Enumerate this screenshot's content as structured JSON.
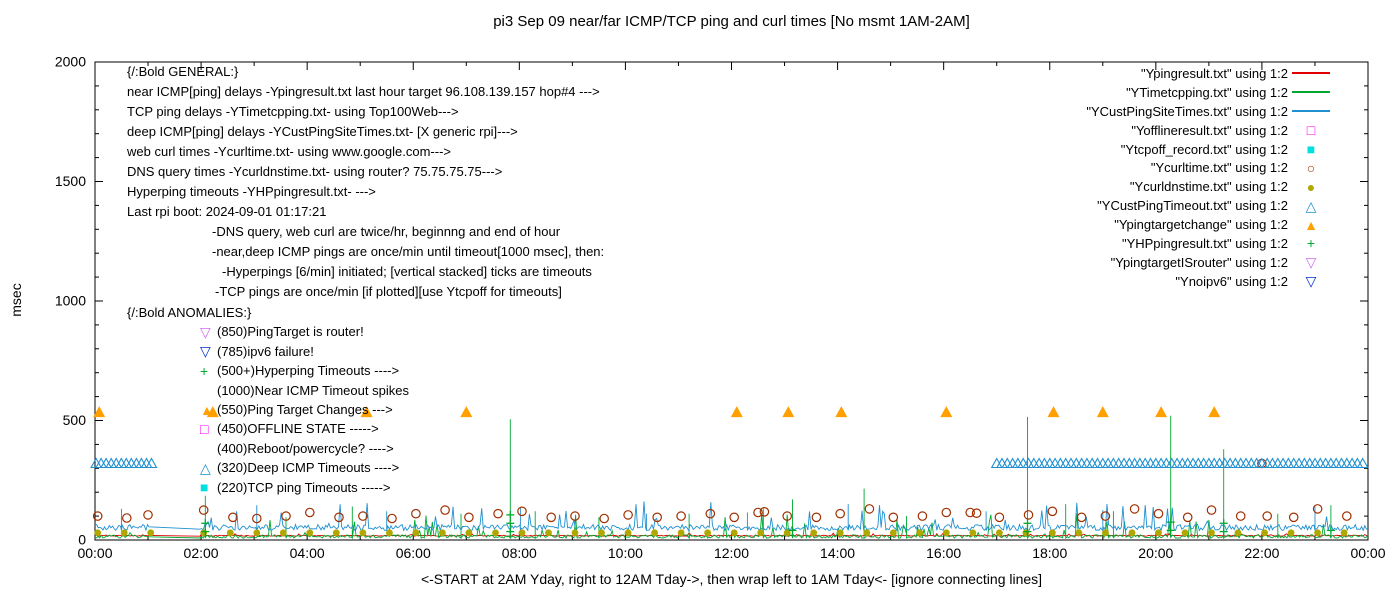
{
  "title": "pi3 Sep 09  near/far ICMP/TCP ping and curl times [No msmt 1AM-2AM]",
  "ylabel": "msec",
  "xlabel": "<-START at 2AM Yday, right to 12AM Tday->, then wrap left to 1AM Tday<- [ignore connecting lines]",
  "axes": {
    "y_ticks": [
      0,
      500,
      1000,
      1500,
      2000
    ],
    "x_ticks": [
      {
        "h": 0,
        "label": "00:00"
      },
      {
        "h": 2,
        "label": "02:00"
      },
      {
        "h": 4,
        "label": "04:00"
      },
      {
        "h": 6,
        "label": "06:00"
      },
      {
        "h": 8,
        "label": "08:00"
      },
      {
        "h": 10,
        "label": "10:00"
      },
      {
        "h": 12,
        "label": "12:00"
      },
      {
        "h": 14,
        "label": "14:00"
      },
      {
        "h": 16,
        "label": "16:00"
      },
      {
        "h": 18,
        "label": "18:00"
      },
      {
        "h": 20,
        "label": "20:00"
      },
      {
        "h": 22,
        "label": "22:00"
      },
      {
        "h": 24,
        "label": "00:00"
      }
    ]
  },
  "legend": [
    {
      "label": "\"Ypingresult.txt\" using 1:2",
      "style": "line",
      "color": "#e00000"
    },
    {
      "label": "\"YTimetcpping.txt\" using 1:2",
      "style": "line",
      "color": "#00a830"
    },
    {
      "label": "\"YCustPingSiteTimes.txt\" using 1:2",
      "style": "line",
      "color": "#2090d0"
    },
    {
      "label": "\"Yofflineresult.txt\" using 1:2",
      "style": "square-open",
      "color": "#ff00ff"
    },
    {
      "label": "\"Ytcpoff_record.txt\" using 1:2",
      "style": "square-filled",
      "color": "#00e0e0"
    },
    {
      "label": "\"Ycurltime.txt\" using 1:2",
      "style": "circle-open",
      "color": "#a03000"
    },
    {
      "label": "\"Ycurldnstime.txt\" using 1:2",
      "style": "circle-filled",
      "color": "#b0a800"
    },
    {
      "label": "\"YCustPingTimeout.txt\" using 1:2",
      "style": "triangle-up-open",
      "color": "#2090d0"
    },
    {
      "label": "\"Ypingtargetchange\" using 1:2",
      "style": "triangle-up-filled",
      "color": "#ffa000"
    },
    {
      "label": "\"YHPpingresult.txt\" using 1:2",
      "style": "plus",
      "color": "#00a830"
    },
    {
      "label": "\"YpingtargetISrouter\" using 1:2",
      "style": "triangle-down-open",
      "color": "#d070f0"
    },
    {
      "label": "\"Ynoipv6\" using 1:2",
      "style": "triangle-down-open",
      "color": "#0033cc"
    }
  ],
  "annotations": {
    "general": {
      "heading": "{/:Bold GENERAL:}",
      "lines": [
        {
          "indent": 0,
          "text": "near ICMP[ping] delays -Ypingresult.txt last hour target 96.108.139.157 hop#4 --->"
        },
        {
          "indent": 0,
          "text": "TCP ping delays -YTimetcpping.txt- using Top100Web--->"
        },
        {
          "indent": 0,
          "text": "deep ICMP[ping] delays -YCustPingSiteTimes.txt- [X generic rpi]--->"
        },
        {
          "indent": 0,
          "text": "web curl times -Ycurltime.txt- using www.google.com--->"
        },
        {
          "indent": 0,
          "text": "DNS query times -Ycurldnstime.txt- using router? 75.75.75.75--->"
        },
        {
          "indent": 0,
          "text": "Hyperping timeouts -YHPpingresult.txt- --->"
        },
        {
          "indent": 0,
          "text": "Last rpi boot: 2024-09-01 01:17:21"
        },
        {
          "indent": 85,
          "text": "-DNS query, web curl are twice/hr, beginnng and end of hour"
        },
        {
          "indent": 85,
          "text": "-near,deep ICMP pings are once/min until timeout[1000 msec], then:"
        },
        {
          "indent": 95,
          "text": "-Hyperpings [6/min] initiated; [vertical stacked] ticks are timeouts"
        },
        {
          "indent": 88,
          "text": "-TCP pings are once/min [if plotted][use Ytcpoff for timeouts]"
        }
      ]
    },
    "anomalies": {
      "heading": "{/:Bold ANOMALIES:}",
      "lines": [
        {
          "glyph": "triangle-down-open",
          "color": "#d070f0",
          "text": "(850)PingTarget is router!"
        },
        {
          "glyph": "triangle-down-open",
          "color": "#0033cc",
          "text": "(785)ipv6 failure!"
        },
        {
          "glyph": "plus",
          "color": "#00a830",
          "text": "(500+)Hyperping Timeouts ---->"
        },
        {
          "glyph": "",
          "color": "",
          "text": "(1000)Near ICMP Timeout spikes"
        },
        {
          "glyph": "triangle-up-filled",
          "color": "#ffa000",
          "text": "(550)Ping Target Changes --->"
        },
        {
          "glyph": "square-open",
          "color": "#ff00ff",
          "text": "(450)OFFLINE STATE ----->"
        },
        {
          "glyph": "",
          "color": "",
          "text": "(400)Reboot/powercycle? ---->"
        },
        {
          "glyph": "triangle-up-open",
          "color": "#2090d0",
          "text": "(320)Deep ICMP Timeouts ---->"
        },
        {
          "glyph": "square-filled",
          "color": "#00e0e0",
          "text": "(220)TCP ping Timeouts ----->"
        }
      ]
    }
  },
  "chart_data": {
    "type": "line",
    "title": "pi3 Sep 09  near/far ICMP/TCP ping and curl times [No msmt 1AM-2AM]",
    "xlabel_unit": "time of day (hours 0-24)",
    "ylabel": "msec",
    "x_range": [
      0,
      24
    ],
    "y_range": [
      0,
      2000
    ],
    "grid": false,
    "legend_position": "top-right",
    "gap_hours": [
      1.03,
      1.97
    ],
    "line_series": [
      {
        "name": "Ypingresult.txt",
        "style": "line",
        "color": "#e00000",
        "baseline": 16,
        "noise": 8,
        "burst": 1.2,
        "spikes": []
      },
      {
        "name": "YTimetcpping.txt",
        "style": "line",
        "color": "#00a830",
        "baseline": 8,
        "noise": 28,
        "burst": 3.5,
        "spikes": [
          [
            2.08,
            185
          ],
          [
            3.6,
            95
          ],
          [
            4.85,
            140
          ],
          [
            6.9,
            110
          ],
          [
            7.83,
            505
          ],
          [
            8.3,
            120
          ],
          [
            9.5,
            95
          ],
          [
            11.2,
            110
          ],
          [
            12.6,
            130
          ],
          [
            13.15,
            170
          ],
          [
            14.5,
            215
          ],
          [
            15.3,
            100
          ],
          [
            17.58,
            515
          ],
          [
            18.3,
            150
          ],
          [
            19.2,
            120
          ],
          [
            20.28,
            520
          ],
          [
            21.28,
            380
          ],
          [
            22.3,
            110
          ],
          [
            23.3,
            145
          ]
        ]
      },
      {
        "name": "YCustPingSiteTimes.txt",
        "style": "line",
        "color": "#2090d0",
        "baseline": 40,
        "noise": 50,
        "burst": 2.2,
        "spikes": [
          [
            0.5,
            130
          ],
          [
            3.05,
            145
          ],
          [
            5.5,
            120
          ],
          [
            8.02,
            135
          ],
          [
            10.4,
            110
          ],
          [
            12.3,
            115
          ],
          [
            14.2,
            150
          ],
          [
            16.8,
            120
          ],
          [
            19.0,
            125
          ],
          [
            23.0,
            140
          ]
        ]
      }
    ],
    "marker_series": [
      {
        "name": "Yofflineresult.txt",
        "style": "square-open",
        "color": "#ff00ff",
        "points": []
      },
      {
        "name": "Ytcpoff_record.txt",
        "style": "square-filled",
        "color": "#00e0e0",
        "points": []
      },
      {
        "name": "Ycurltime.txt",
        "style": "circle-open",
        "color": "#a03000",
        "points": [
          [
            0.05,
            100
          ],
          [
            0.6,
            92
          ],
          [
            1.0,
            105
          ],
          [
            2.05,
            125
          ],
          [
            2.6,
            95
          ],
          [
            3.05,
            90
          ],
          [
            3.6,
            100
          ],
          [
            4.05,
            115
          ],
          [
            4.6,
            95
          ],
          [
            5.05,
            100
          ],
          [
            5.6,
            90
          ],
          [
            6.05,
            110
          ],
          [
            6.6,
            125
          ],
          [
            7.05,
            95
          ],
          [
            7.6,
            110
          ],
          [
            8.05,
            120
          ],
          [
            8.6,
            95
          ],
          [
            9.05,
            100
          ],
          [
            9.6,
            90
          ],
          [
            10.05,
            105
          ],
          [
            10.6,
            95
          ],
          [
            11.05,
            100
          ],
          [
            11.6,
            110
          ],
          [
            12.05,
            95
          ],
          [
            12.5,
            115
          ],
          [
            12.62,
            118
          ],
          [
            13.05,
            100
          ],
          [
            13.6,
            95
          ],
          [
            14.05,
            110
          ],
          [
            14.6,
            130
          ],
          [
            15.05,
            95
          ],
          [
            15.6,
            100
          ],
          [
            16.05,
            115
          ],
          [
            16.5,
            115
          ],
          [
            16.62,
            112
          ],
          [
            17.05,
            95
          ],
          [
            17.6,
            105
          ],
          [
            18.05,
            120
          ],
          [
            18.6,
            95
          ],
          [
            19.05,
            100
          ],
          [
            19.6,
            130
          ],
          [
            20.05,
            110
          ],
          [
            20.6,
            95
          ],
          [
            21.05,
            125
          ],
          [
            21.6,
            100
          ],
          [
            22.0,
            320
          ],
          [
            22.1,
            100
          ],
          [
            22.6,
            95
          ],
          [
            23.05,
            130
          ],
          [
            23.6,
            100
          ]
        ]
      },
      {
        "name": "Ycurldnstime.txt",
        "style": "circle-filled",
        "color": "#b0a800",
        "runs": [
          {
            "start": 0.05,
            "end": 1.06,
            "step": 0.5,
            "y": 30
          },
          {
            "start": 2.05,
            "end": 23.95,
            "step": 0.5,
            "y": 30
          }
        ]
      },
      {
        "name": "YCustPingTimeout.txt",
        "style": "triangle-up-open",
        "color": "#2090d0",
        "runs": [
          {
            "start": 0.02,
            "end": 1.08,
            "step": 0.095,
            "y": 320
          },
          {
            "start": 17.0,
            "end": 23.97,
            "step": 0.1,
            "y": 320
          }
        ]
      },
      {
        "name": "Ypingtargetchange",
        "style": "triangle-up-filled",
        "color": "#ffa000",
        "y_value": 535,
        "x": [
          0.08,
          2.22,
          5.12,
          7.0,
          12.1,
          13.07,
          14.07,
          16.05,
          18.07,
          19.0,
          20.1,
          21.1
        ]
      },
      {
        "name": "YHPpingresult.txt",
        "style": "plus",
        "color": "#00a830",
        "points": [
          [
            2.08,
            35
          ],
          [
            2.08,
            70
          ],
          [
            7.83,
            35
          ],
          [
            7.83,
            70
          ],
          [
            7.83,
            105
          ],
          [
            13.15,
            40
          ],
          [
            17.58,
            35
          ],
          [
            17.58,
            70
          ],
          [
            20.28,
            40
          ],
          [
            20.28,
            75
          ],
          [
            21.28,
            35
          ],
          [
            21.28,
            70
          ],
          [
            23.3,
            40
          ]
        ]
      },
      {
        "name": "YpingtargetISrouter",
        "style": "triangle-down-open",
        "color": "#d070f0",
        "points": []
      },
      {
        "name": "Ynoipv6",
        "style": "triangle-down-open",
        "color": "#0033cc",
        "points": []
      }
    ]
  }
}
